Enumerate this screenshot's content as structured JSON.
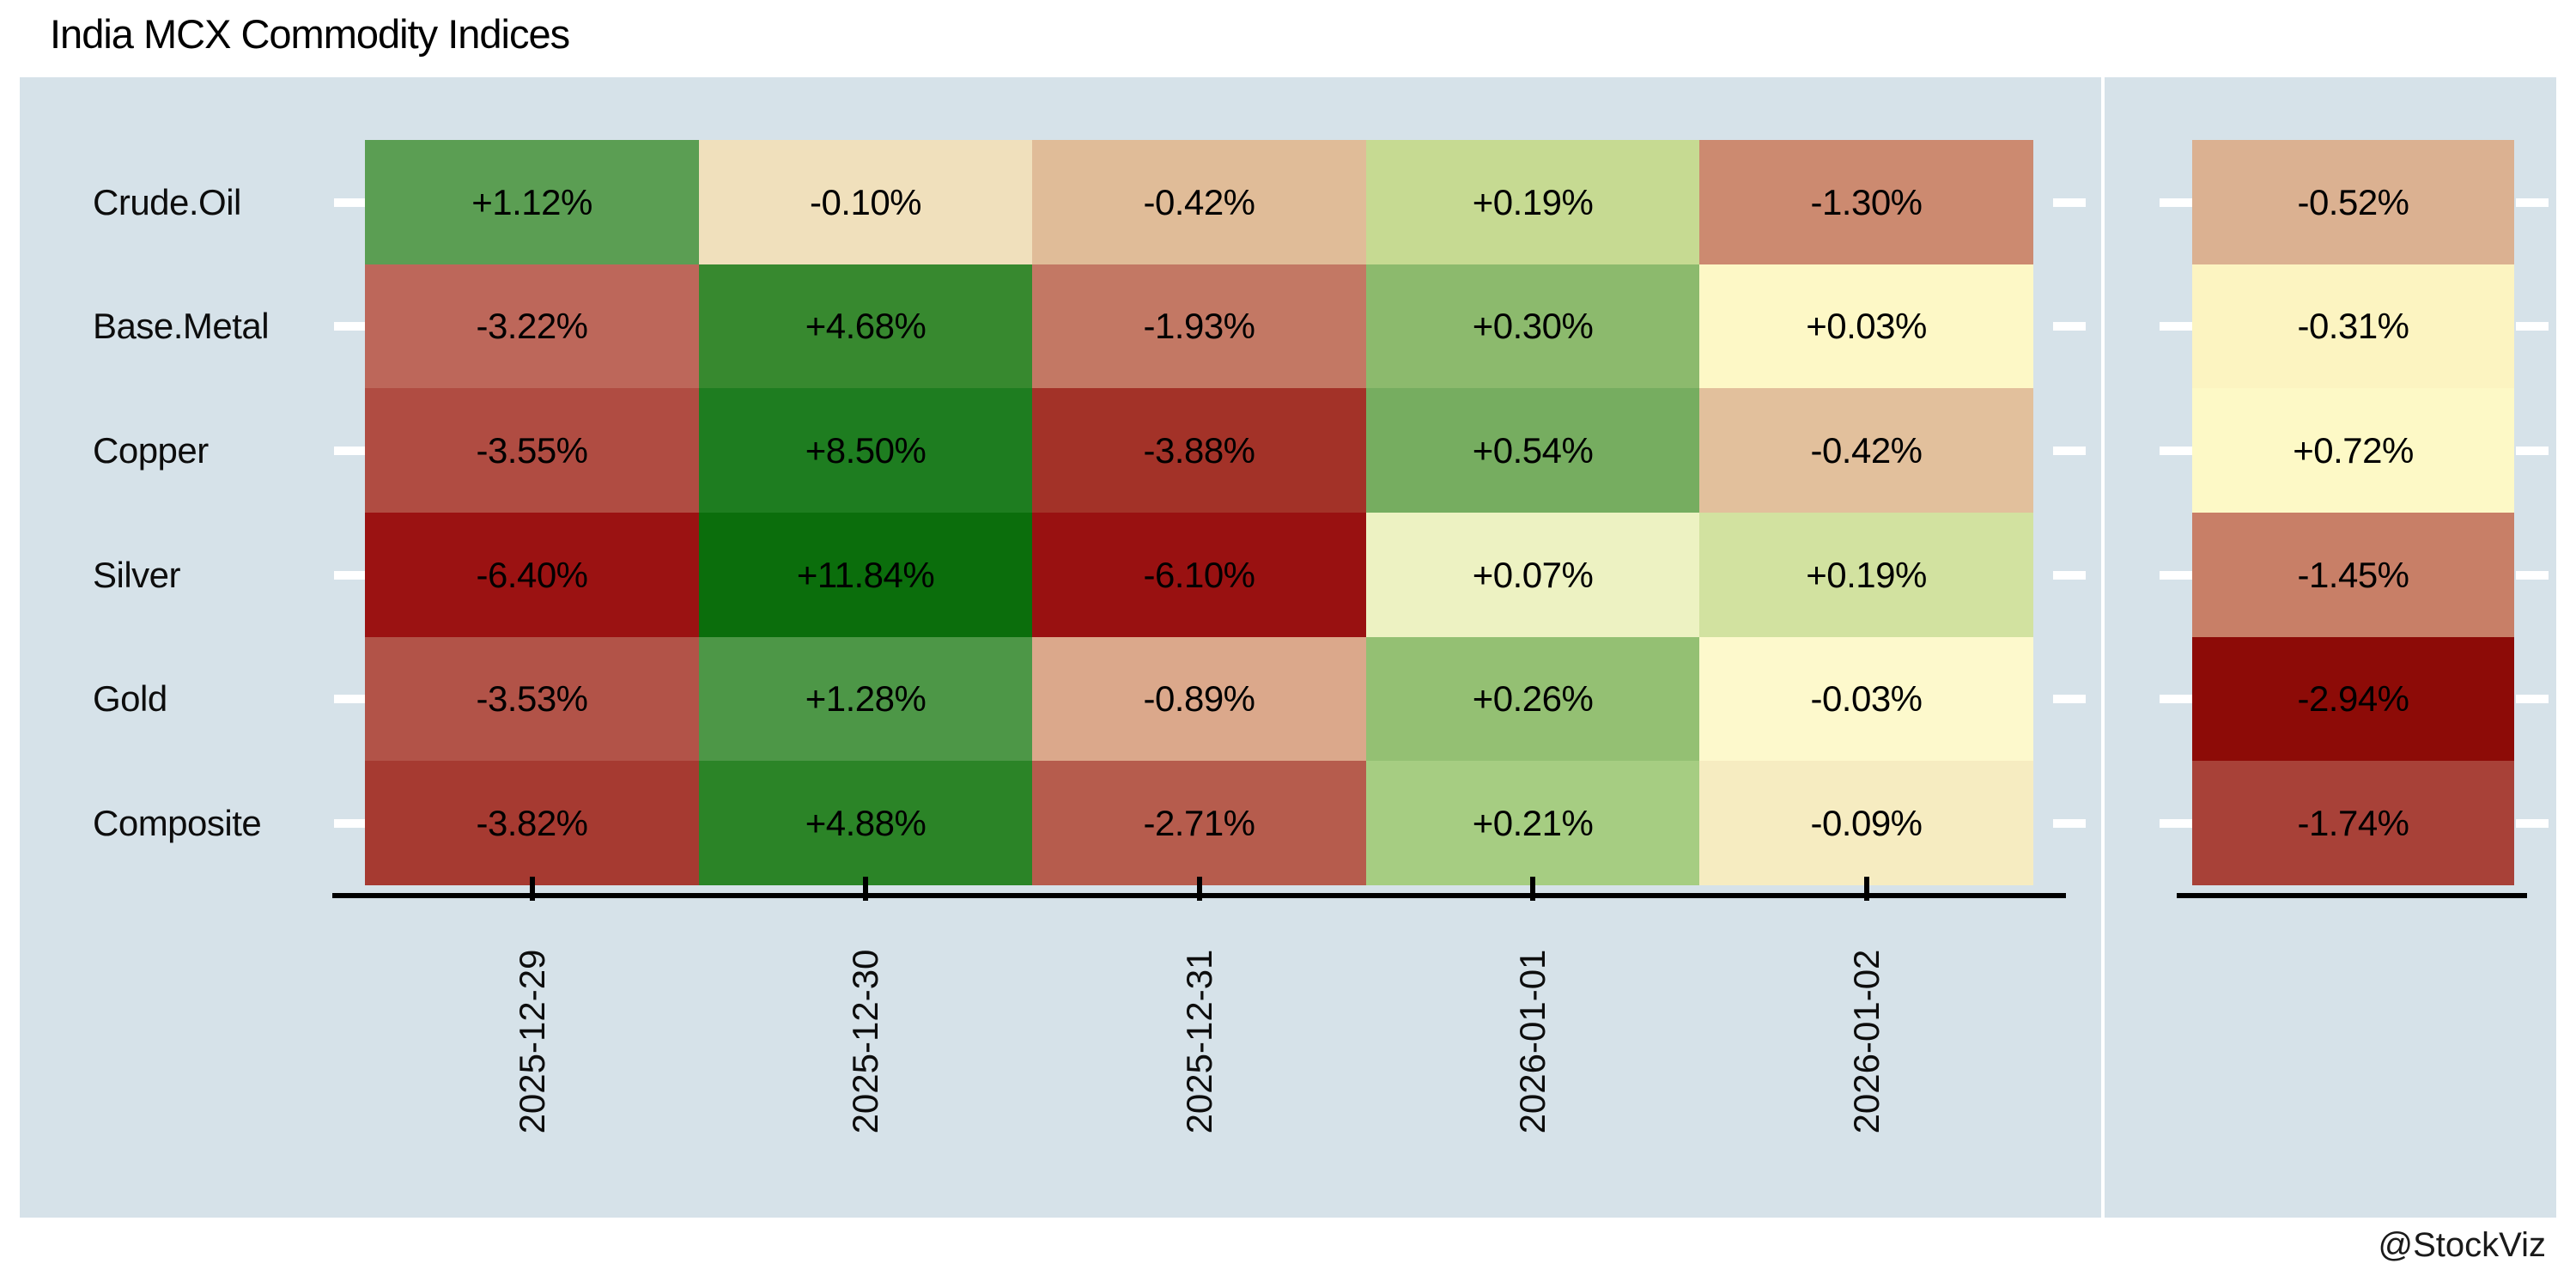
{
  "title": "India MCX Commodity Indices",
  "attribution": "@StockViz",
  "colors": {
    "page_bg": "#ffffff",
    "panel_bg": "#d6e2e9",
    "axis_line": "#000000",
    "tick_mark_white": "#ffffff",
    "text": "#0d0d0d"
  },
  "chart_data": {
    "type": "heatmap",
    "title": "India MCX Commodity Indices",
    "colormap": "red-yellow-green diverging",
    "legend": "none",
    "x_tick_rotation": 90,
    "columns": [
      "2025-12-29",
      "2025-12-30",
      "2025-12-31",
      "2026-01-01",
      "2026-01-02"
    ],
    "rows": [
      "Crude.Oil",
      "Base.Metal",
      "Copper",
      "Silver",
      "Gold",
      "Composite"
    ],
    "series": [
      {
        "name": "Crude.Oil",
        "values": [
          1.12,
          -0.1,
          -0.42,
          0.19,
          -1.3
        ],
        "labels": [
          "+1.12%",
          "-0.10%",
          "-0.42%",
          "+0.19%",
          "-1.30%"
        ],
        "colors": [
          "#5b9e53",
          "#f0e0bc",
          "#e0bc98",
          "#c6da92",
          "#cc8a70"
        ],
        "summary_value": -0.52,
        "summary_label": "-0.52%",
        "summary_color": "#dbb191"
      },
      {
        "name": "Base.Metal",
        "values": [
          -3.22,
          4.68,
          -1.93,
          0.3,
          0.03
        ],
        "labels": [
          "-3.22%",
          "+4.68%",
          "-1.93%",
          "+0.30%",
          "+0.03%"
        ],
        "colors": [
          "#bd675a",
          "#37892f",
          "#c37864",
          "#8cba6d",
          "#fdf8c6"
        ],
        "summary_value": -0.31,
        "summary_label": "-0.31%",
        "summary_color": "#fcf4c1"
      },
      {
        "name": "Copper",
        "values": [
          -3.55,
          8.5,
          -3.88,
          0.54,
          -0.42
        ],
        "labels": [
          "-3.55%",
          "+8.50%",
          "-3.88%",
          "+0.54%",
          "-0.42%"
        ],
        "colors": [
          "#b04c42",
          "#1e7d20",
          "#a33228",
          "#76ad60",
          "#e2c09c"
        ],
        "summary_value": 0.72,
        "summary_label": "+0.72%",
        "summary_color": "#fdf9c6"
      },
      {
        "name": "Silver",
        "values": [
          -6.4,
          11.84,
          -6.1,
          0.07,
          0.19
        ],
        "labels": [
          "-6.40%",
          "+11.84%",
          "-6.10%",
          "+0.07%",
          "+0.19%"
        ],
        "colors": [
          "#9b1212",
          "#0b6e0c",
          "#991111",
          "#edf2c2",
          "#d2e2a0"
        ],
        "summary_value": -1.45,
        "summary_label": "-1.45%",
        "summary_color": "#c87f67"
      },
      {
        "name": "Gold",
        "values": [
          -3.53,
          1.28,
          -0.89,
          0.26,
          -0.03
        ],
        "labels": [
          "-3.53%",
          "+1.28%",
          "-0.89%",
          "+0.26%",
          "-0.03%"
        ],
        "colors": [
          "#b25348",
          "#4d9747",
          "#dba88b",
          "#94c073",
          "#fdf9cc"
        ],
        "summary_value": -2.94,
        "summary_label": "-2.94%",
        "summary_color": "#8d0b07"
      },
      {
        "name": "Composite",
        "values": [
          -3.82,
          4.88,
          -2.71,
          0.21,
          -0.09
        ],
        "labels": [
          "-3.82%",
          "+4.88%",
          "-2.71%",
          "+0.21%",
          "-0.09%"
        ],
        "colors": [
          "#a63a31",
          "#2b8427",
          "#b65c4d",
          "#a6cd82",
          "#f6ecc1"
        ],
        "summary_value": -1.74,
        "summary_label": "-1.74%",
        "summary_color": "#a84138"
      }
    ]
  }
}
